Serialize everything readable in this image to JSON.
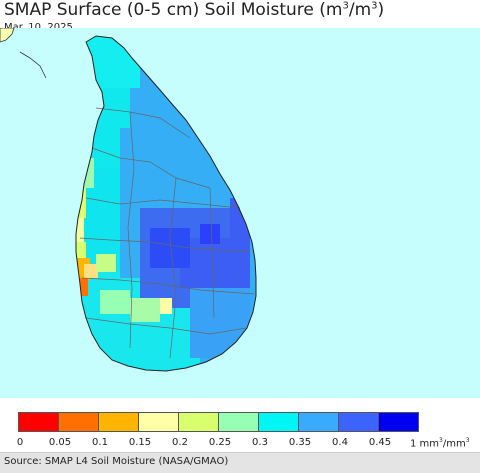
{
  "header": {
    "title_main": "SMAP Surface (0-5 cm) Soil Moisture (m",
    "title_sup1": "3",
    "title_mid": "/m",
    "title_sup2": "3",
    "title_end": ")",
    "date": "Mar. 10, 2025"
  },
  "map": {
    "region": "Sri Lanka",
    "ocean_color": "#c6fdfd"
  },
  "legend": {
    "swatches": [
      {
        "range": "0-0.05",
        "color": "#ff0000"
      },
      {
        "range": "0.05-0.1",
        "color": "#ff7000"
      },
      {
        "range": "0.1-0.15",
        "color": "#ffb400"
      },
      {
        "range": "0.15-0.2",
        "color": "#ffffa8"
      },
      {
        "range": "0.2-0.25",
        "color": "#d8ff6e"
      },
      {
        "range": "0.25-0.3",
        "color": "#96ffb4"
      },
      {
        "range": "0.3-0.35",
        "color": "#00f5f5"
      },
      {
        "range": "0.35-0.4",
        "color": "#3aaaff"
      },
      {
        "range": "0.4-0.45",
        "color": "#3d63ff"
      },
      {
        "range": "0.45+",
        "color": "#0000f0"
      }
    ],
    "ticks": [
      "0",
      "0.05",
      "0.1",
      "0.15",
      "0.2",
      "0.25",
      "0.3",
      "0.35",
      "0.4",
      "0.45"
    ],
    "unit_prefix": "1 mm",
    "unit_sup1": "3",
    "unit_mid": "/mm",
    "unit_sup2": "3"
  },
  "footer": {
    "source": "Source: SMAP L4 Soil Moisture (NASA/GMAO)"
  }
}
